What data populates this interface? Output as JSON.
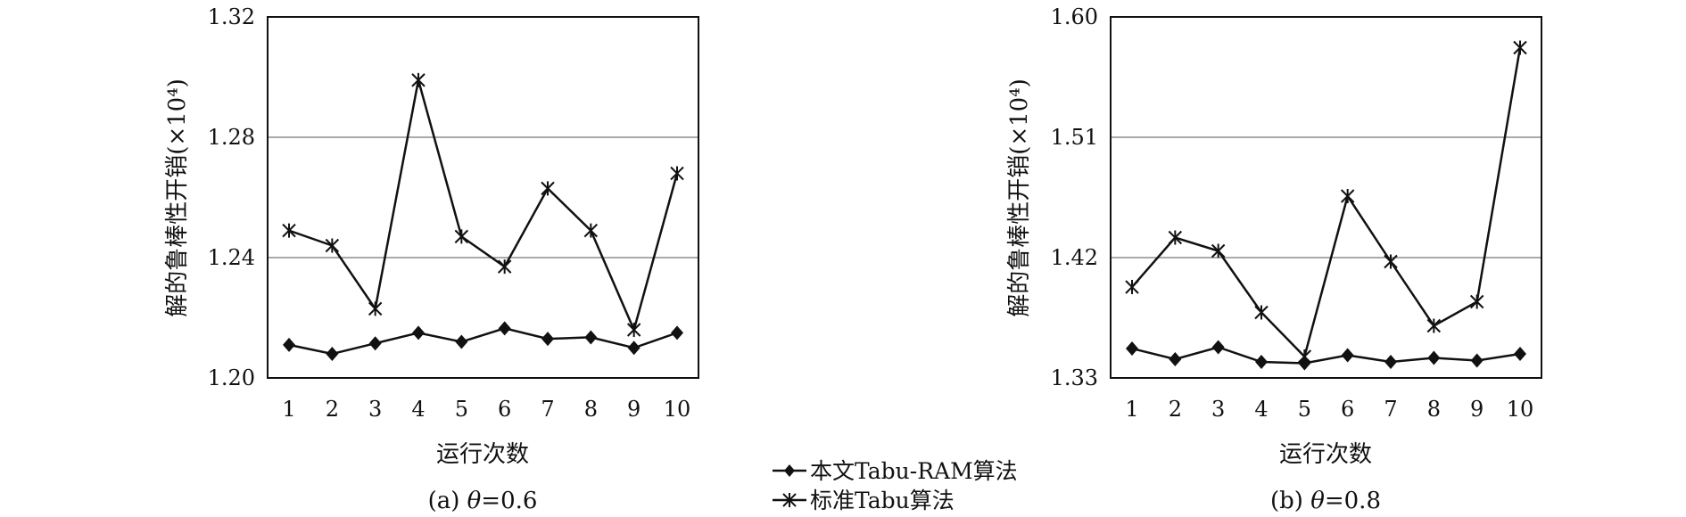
{
  "figure": {
    "legend": {
      "entries": [
        {
          "label": "本文Tabu-RAM算法",
          "marker": "diamond"
        },
        {
          "label": "标准Tabu算法",
          "marker": "asterisk"
        }
      ]
    }
  },
  "chart_data": [
    {
      "type": "line",
      "caption_prefix": "(a) ",
      "caption_symbol": "θ",
      "caption_value": "=0.6",
      "xlabel": "运行次数",
      "ylabel": "解的鲁棒性开销(×10⁴)",
      "categories": [
        "1",
        "2",
        "3",
        "4",
        "5",
        "6",
        "7",
        "8",
        "9",
        "10"
      ],
      "ylim": [
        1.2,
        1.32
      ],
      "yticks": [
        "1.20",
        "1.24",
        "1.28",
        "1.32"
      ],
      "grid": true,
      "series": [
        {
          "name": "本文Tabu-RAM算法",
          "marker": "diamond",
          "values": [
            1.211,
            1.208,
            1.2115,
            1.215,
            1.212,
            1.2165,
            1.213,
            1.2135,
            1.21,
            1.215
          ]
        },
        {
          "name": "标准Tabu算法",
          "marker": "asterisk",
          "values": [
            1.249,
            1.244,
            1.223,
            1.299,
            1.247,
            1.237,
            1.263,
            1.249,
            1.216,
            1.268
          ]
        }
      ]
    },
    {
      "type": "line",
      "caption_prefix": "(b) ",
      "caption_symbol": "θ",
      "caption_value": "=0.8",
      "xlabel": "运行次数",
      "ylabel": "解的鲁棒性开销(×10⁴)",
      "categories": [
        "1",
        "2",
        "3",
        "4",
        "5",
        "6",
        "7",
        "8",
        "9",
        "10"
      ],
      "ylim": [
        1.33,
        1.6
      ],
      "yticks": [
        "1.33",
        "1.42",
        "1.51",
        "1.60"
      ],
      "grid": true,
      "series": [
        {
          "name": "本文Tabu-RAM算法",
          "marker": "diamond",
          "values": [
            1.352,
            1.344,
            1.353,
            1.342,
            1.341,
            1.347,
            1.342,
            1.345,
            1.343,
            1.348
          ]
        },
        {
          "name": "标准Tabu算法",
          "marker": "asterisk",
          "values": [
            1.398,
            1.435,
            1.425,
            1.379,
            1.346,
            1.466,
            1.417,
            1.369,
            1.387,
            1.577
          ]
        }
      ]
    }
  ]
}
